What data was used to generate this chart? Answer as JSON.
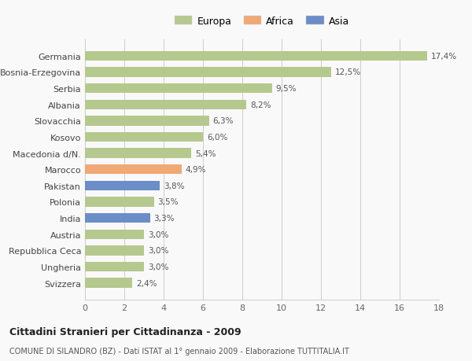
{
  "categories": [
    "Svizzera",
    "Ungheria",
    "Repubblica Ceca",
    "Austria",
    "India",
    "Polonia",
    "Pakistan",
    "Marocco",
    "Macedonia d/N.",
    "Kosovo",
    "Slovacchia",
    "Albania",
    "Serbia",
    "Bosnia-Erzegovina",
    "Germania"
  ],
  "values": [
    2.4,
    3.0,
    3.0,
    3.0,
    3.3,
    3.5,
    3.8,
    4.9,
    5.4,
    6.0,
    6.3,
    8.2,
    9.5,
    12.5,
    17.4
  ],
  "labels": [
    "2,4%",
    "3,0%",
    "3,0%",
    "3,0%",
    "3,3%",
    "3,5%",
    "3,8%",
    "4,9%",
    "5,4%",
    "6,0%",
    "6,3%",
    "8,2%",
    "9,5%",
    "12,5%",
    "17,4%"
  ],
  "colors": [
    "#b5c98e",
    "#b5c98e",
    "#b5c98e",
    "#b5c98e",
    "#6b8ec8",
    "#b5c98e",
    "#6b8ec8",
    "#f0a875",
    "#b5c98e",
    "#b5c98e",
    "#b5c98e",
    "#b5c98e",
    "#b5c98e",
    "#b5c98e",
    "#b5c98e"
  ],
  "legend_labels": [
    "Europa",
    "Africa",
    "Asia"
  ],
  "legend_colors": [
    "#b5c98e",
    "#f0a875",
    "#6b8ec8"
  ],
  "title": "Cittadini Stranieri per Cittadinanza - 2009",
  "subtitle": "COMUNE DI SILANDRO (BZ) - Dati ISTAT al 1° gennaio 2009 - Elaborazione TUTTITALIA.IT",
  "xlim": [
    0,
    18
  ],
  "xticks": [
    0,
    2,
    4,
    6,
    8,
    10,
    12,
    14,
    16,
    18
  ],
  "background_color": "#f9f9f9",
  "bar_height": 0.6,
  "grid_color": "#cccccc"
}
